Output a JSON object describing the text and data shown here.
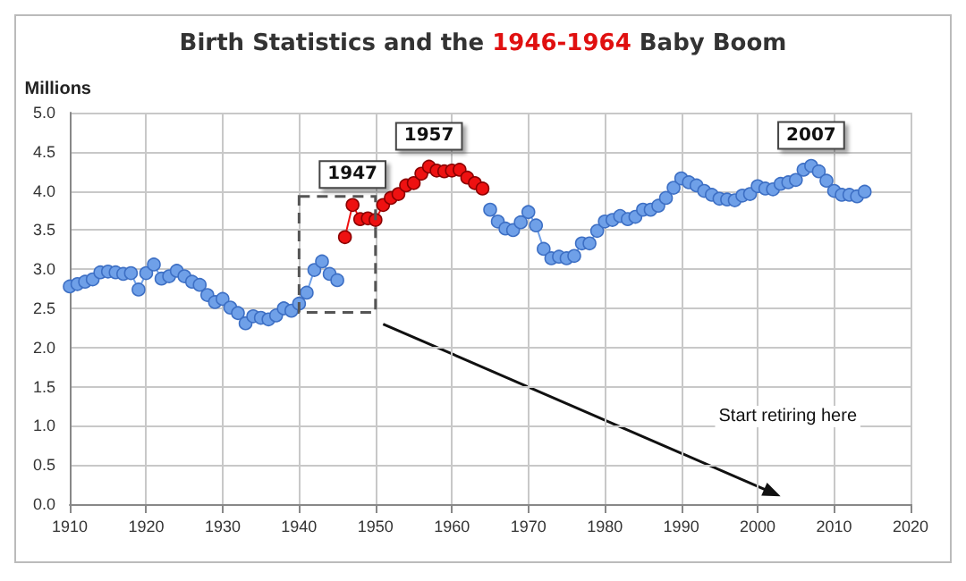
{
  "chart_data": {
    "type": "line",
    "title": "Birth Statistics and the 1946-1964 Baby Boom",
    "ylabel": "Millions",
    "x": [
      1910,
      1911,
      1912,
      1913,
      1914,
      1915,
      1916,
      1917,
      1918,
      1919,
      1920,
      1921,
      1922,
      1923,
      1924,
      1925,
      1926,
      1927,
      1928,
      1929,
      1930,
      1931,
      1932,
      1933,
      1934,
      1935,
      1936,
      1937,
      1938,
      1939,
      1940,
      1941,
      1942,
      1943,
      1944,
      1945,
      1946,
      1947,
      1948,
      1949,
      1950,
      1951,
      1952,
      1953,
      1954,
      1955,
      1956,
      1957,
      1958,
      1959,
      1960,
      1961,
      1962,
      1963,
      1964,
      1965,
      1966,
      1967,
      1968,
      1969,
      1970,
      1971,
      1972,
      1973,
      1974,
      1975,
      1976,
      1977,
      1978,
      1979,
      1980,
      1981,
      1982,
      1983,
      1984,
      1985,
      1986,
      1987,
      1988,
      1989,
      1990,
      1991,
      1992,
      1993,
      1994,
      1995,
      1996,
      1997,
      1998,
      1999,
      2000,
      2001,
      2002,
      2003,
      2004,
      2005,
      2006,
      2007,
      2008,
      2009,
      2010,
      2011,
      2012,
      2013,
      2014
    ],
    "series": [
      {
        "color": "#6fa0e8",
        "values": [
          2.78,
          2.81,
          2.84,
          2.87,
          2.96,
          2.97,
          2.96,
          2.94,
          2.95,
          2.74,
          2.95,
          3.06,
          2.88,
          2.91,
          2.98,
          2.91,
          2.84,
          2.8,
          2.67,
          2.58,
          2.62,
          2.51,
          2.44,
          2.31,
          2.4,
          2.38,
          2.36,
          2.41,
          2.5,
          2.47,
          2.56,
          2.7,
          2.99,
          3.1,
          2.94,
          2.86,
          null,
          null,
          null,
          null,
          null,
          null,
          null,
          null,
          null,
          null,
          null,
          null,
          null,
          null,
          null,
          null,
          null,
          null,
          null,
          3.76,
          3.61,
          3.52,
          3.5,
          3.6,
          3.73,
          3.56,
          3.26,
          3.14,
          3.16,
          3.14,
          3.17,
          3.33,
          3.33,
          3.49,
          3.61,
          3.63,
          3.68,
          3.64,
          3.67,
          3.76,
          3.76,
          3.81,
          3.91,
          4.04,
          4.16,
          4.11,
          4.07,
          4.0,
          3.95,
          3.9,
          3.89,
          3.88,
          3.94,
          3.96,
          4.06,
          4.03,
          4.02,
          4.09,
          4.11,
          4.14,
          4.27,
          4.32,
          4.25,
          4.13,
          4.0,
          3.95,
          3.95,
          3.93,
          3.99
        ]
      },
      {
        "color": "#ee1111",
        "values": [
          null,
          null,
          null,
          null,
          null,
          null,
          null,
          null,
          null,
          null,
          null,
          null,
          null,
          null,
          null,
          null,
          null,
          null,
          null,
          null,
          null,
          null,
          null,
          null,
          null,
          null,
          null,
          null,
          null,
          null,
          null,
          null,
          null,
          null,
          null,
          null,
          3.41,
          3.82,
          3.64,
          3.65,
          3.63,
          3.82,
          3.91,
          3.96,
          4.07,
          4.1,
          4.22,
          4.31,
          4.26,
          4.25,
          4.26,
          4.27,
          4.17,
          4.1,
          4.03,
          null,
          null,
          null,
          null,
          null,
          null,
          null,
          null,
          null,
          null,
          null,
          null,
          null,
          null,
          null,
          null,
          null,
          null,
          null,
          null,
          null,
          null,
          null,
          null,
          null,
          null,
          null,
          null,
          null,
          null,
          null,
          null,
          null,
          null,
          null,
          null,
          null,
          null,
          null,
          null,
          null,
          null,
          null,
          null,
          null,
          null,
          null,
          null,
          null,
          null
        ]
      }
    ],
    "xlim": [
      1910,
      2020
    ],
    "xticks": [
      1910,
      1920,
      1930,
      1940,
      1950,
      1960,
      1970,
      1980,
      1990,
      2000,
      2010,
      2020
    ],
    "ylim": [
      0,
      5
    ],
    "yticks": [
      {
        "value": 0,
        "label": "0.0"
      },
      {
        "value": 0.5,
        "label": "0.5"
      },
      {
        "value": 1,
        "label": "1.0"
      },
      {
        "value": 1.5,
        "label": "1.5"
      },
      {
        "value": 2,
        "label": "2.0"
      },
      {
        "value": 2.5,
        "label": "2.5"
      },
      {
        "value": 3,
        "label": "3.0"
      },
      {
        "value": 3.5,
        "label": "3.5"
      },
      {
        "value": 4,
        "label": "4.0"
      },
      {
        "value": 4.5,
        "label": "4.5"
      },
      {
        "value": 5,
        "label": "5.0"
      }
    ],
    "grid": true,
    "marker": "circle",
    "line_style": "solid",
    "annotations": [
      {
        "text": "1947",
        "x": 1947,
        "y": 3.82
      },
      {
        "text": "1957",
        "x": 1957,
        "y": 4.31
      },
      {
        "text": "2007",
        "x": 2007,
        "y": 4.32
      },
      "Start retiring here"
    ]
  }
}
